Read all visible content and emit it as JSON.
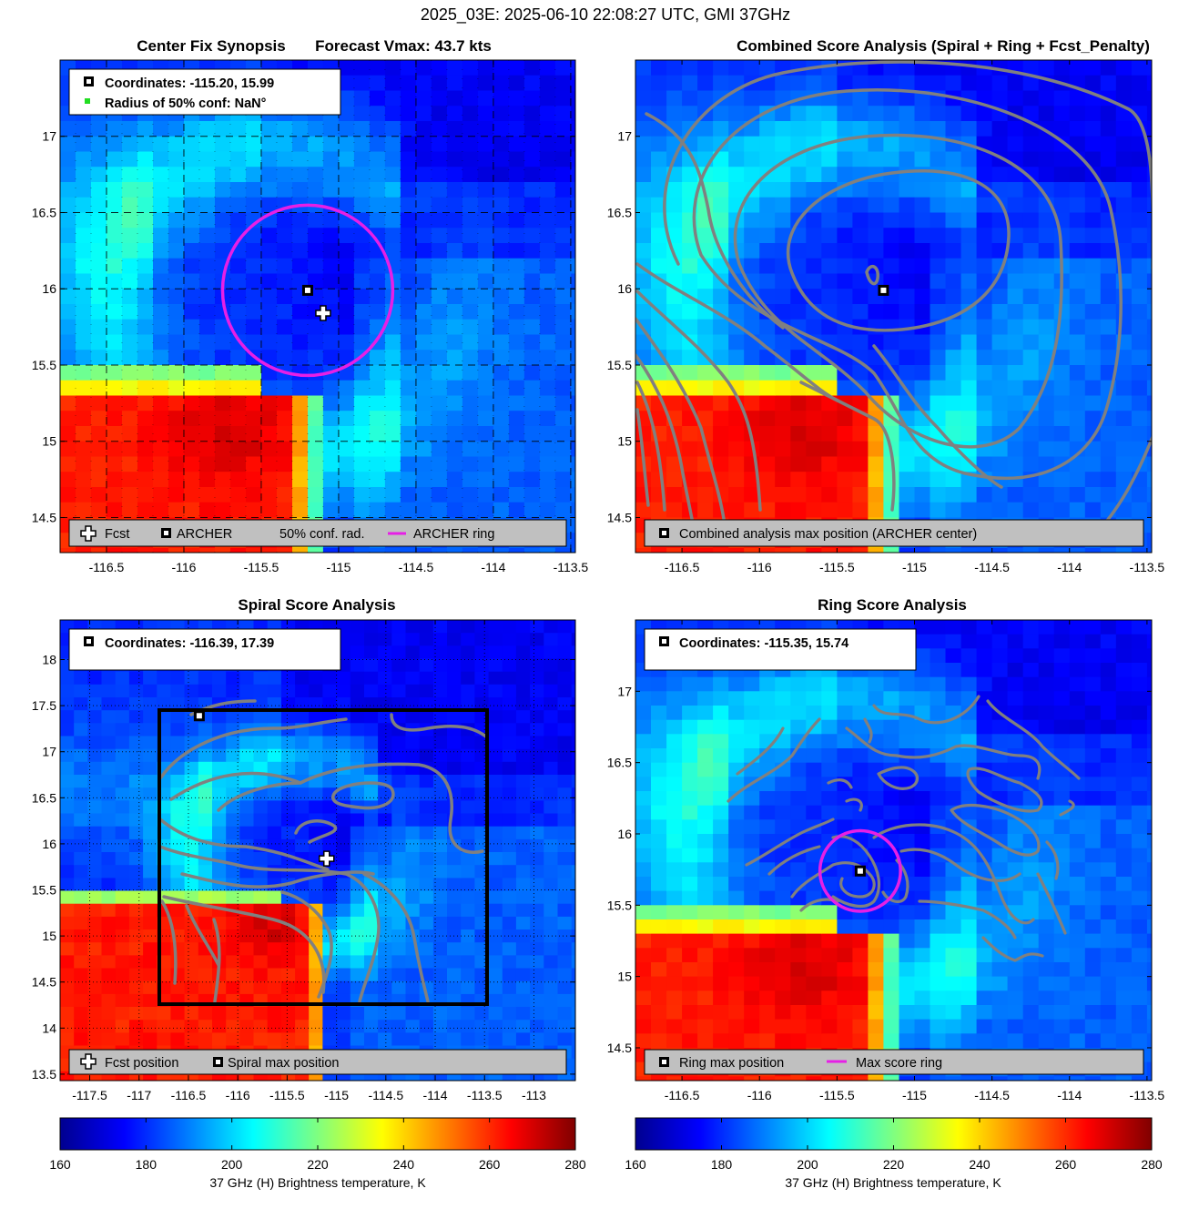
{
  "figure_title": "2025_03E: 2025-06-10 22:08:27 UTC, GMI 37GHz",
  "colors": {
    "ring": "#e61fe6",
    "contour": "#808080",
    "legend_bg": "#c0c0c0",
    "grid": "#000000"
  },
  "colormap": "jet",
  "panels": {
    "p1": {
      "title_left": "Center Fix Synopsis",
      "title_right": "Forecast Vmax: 43.7 kts",
      "info": [
        "Coordinates: -115.20, 15.99",
        "Radius of 50% conf: NaN°"
      ],
      "legend": [
        "Fcst",
        "ARCHER",
        "50% conf. rad.",
        "ARCHER ring"
      ]
    },
    "p2": {
      "title": "Combined Score Analysis (Spiral + Ring + Fcst_Penalty)",
      "legend": [
        "Combined analysis max position (ARCHER center)"
      ]
    },
    "p3": {
      "title": "Spiral Score Analysis",
      "info": [
        "Coordinates: -116.39, 17.39"
      ],
      "legend": [
        "Fcst position",
        "Spiral max position"
      ]
    },
    "p4": {
      "title": "Ring Score Analysis",
      "info": [
        "Coordinates: -115.35, 15.74"
      ],
      "legend": [
        "Ring max position",
        "Max score ring"
      ]
    }
  },
  "colorbar": {
    "label": "37 GHz (H) Brightness temperature, K",
    "ticks": [
      "160",
      "180",
      "200",
      "220",
      "240",
      "260",
      "280"
    ]
  },
  "chart_data": [
    {
      "type": "heatmap",
      "title": "Center Fix Synopsis     Forecast Vmax: 43.7 kts",
      "x_ticks": [
        -116.5,
        -116,
        -115.5,
        -115,
        -114.5,
        -114,
        -113.5
      ],
      "y_ticks": [
        14.5,
        15,
        15.5,
        16,
        16.5,
        17
      ],
      "xlim": [
        -116.8,
        -113.47
      ],
      "ylim": [
        14.27,
        17.5
      ],
      "forecast_position": [
        -115.1,
        15.84
      ],
      "archer_center": [
        -115.2,
        15.99
      ],
      "archer_ring_radius_deg": 0.55,
      "clim": [
        160,
        280
      ]
    },
    {
      "type": "heatmap",
      "title": "Combined Score Analysis (Spiral + Ring + Fcst_Penalty)",
      "x_ticks": [
        -116.5,
        -116,
        -115.5,
        -115,
        -114.5,
        -114,
        -113.5
      ],
      "y_ticks": [
        14.5,
        15,
        15.5,
        16,
        16.5,
        17
      ],
      "xlim": [
        -116.8,
        -113.47
      ],
      "ylim": [
        14.27,
        17.5
      ],
      "max_position": [
        -115.2,
        15.99
      ],
      "clim": [
        160,
        280
      ]
    },
    {
      "type": "heatmap",
      "title": "Spiral Score Analysis",
      "x_ticks": [
        -117.5,
        -117,
        -116.5,
        -116,
        -115.5,
        -115,
        -114.5,
        -114,
        -113.5,
        -113
      ],
      "y_ticks": [
        13.5,
        14,
        14.5,
        15,
        15.5,
        16,
        16.5,
        17,
        17.5,
        18
      ],
      "xlim": [
        -117.8,
        -112.58
      ],
      "ylim": [
        13.43,
        18.43
      ],
      "forecast_position": [
        -115.1,
        15.84
      ],
      "spiral_max_position": [
        -116.39,
        17.39
      ],
      "search_box": {
        "x": [
          -116.8,
          -113.47
        ],
        "y": [
          14.27,
          17.47
        ]
      },
      "clim": [
        160,
        280
      ]
    },
    {
      "type": "heatmap",
      "title": "Ring Score Analysis",
      "x_ticks": [
        -116.5,
        -116,
        -115.5,
        -115,
        -114.5,
        -114,
        -113.5
      ],
      "y_ticks": [
        14.5,
        15,
        15.5,
        16,
        16.5,
        17
      ],
      "xlim": [
        -116.8,
        -113.47
      ],
      "ylim": [
        14.27,
        17.5
      ],
      "ring_max_position": [
        -115.35,
        15.74
      ],
      "max_score_ring_radius_deg": 0.26,
      "clim": [
        160,
        280
      ]
    }
  ]
}
